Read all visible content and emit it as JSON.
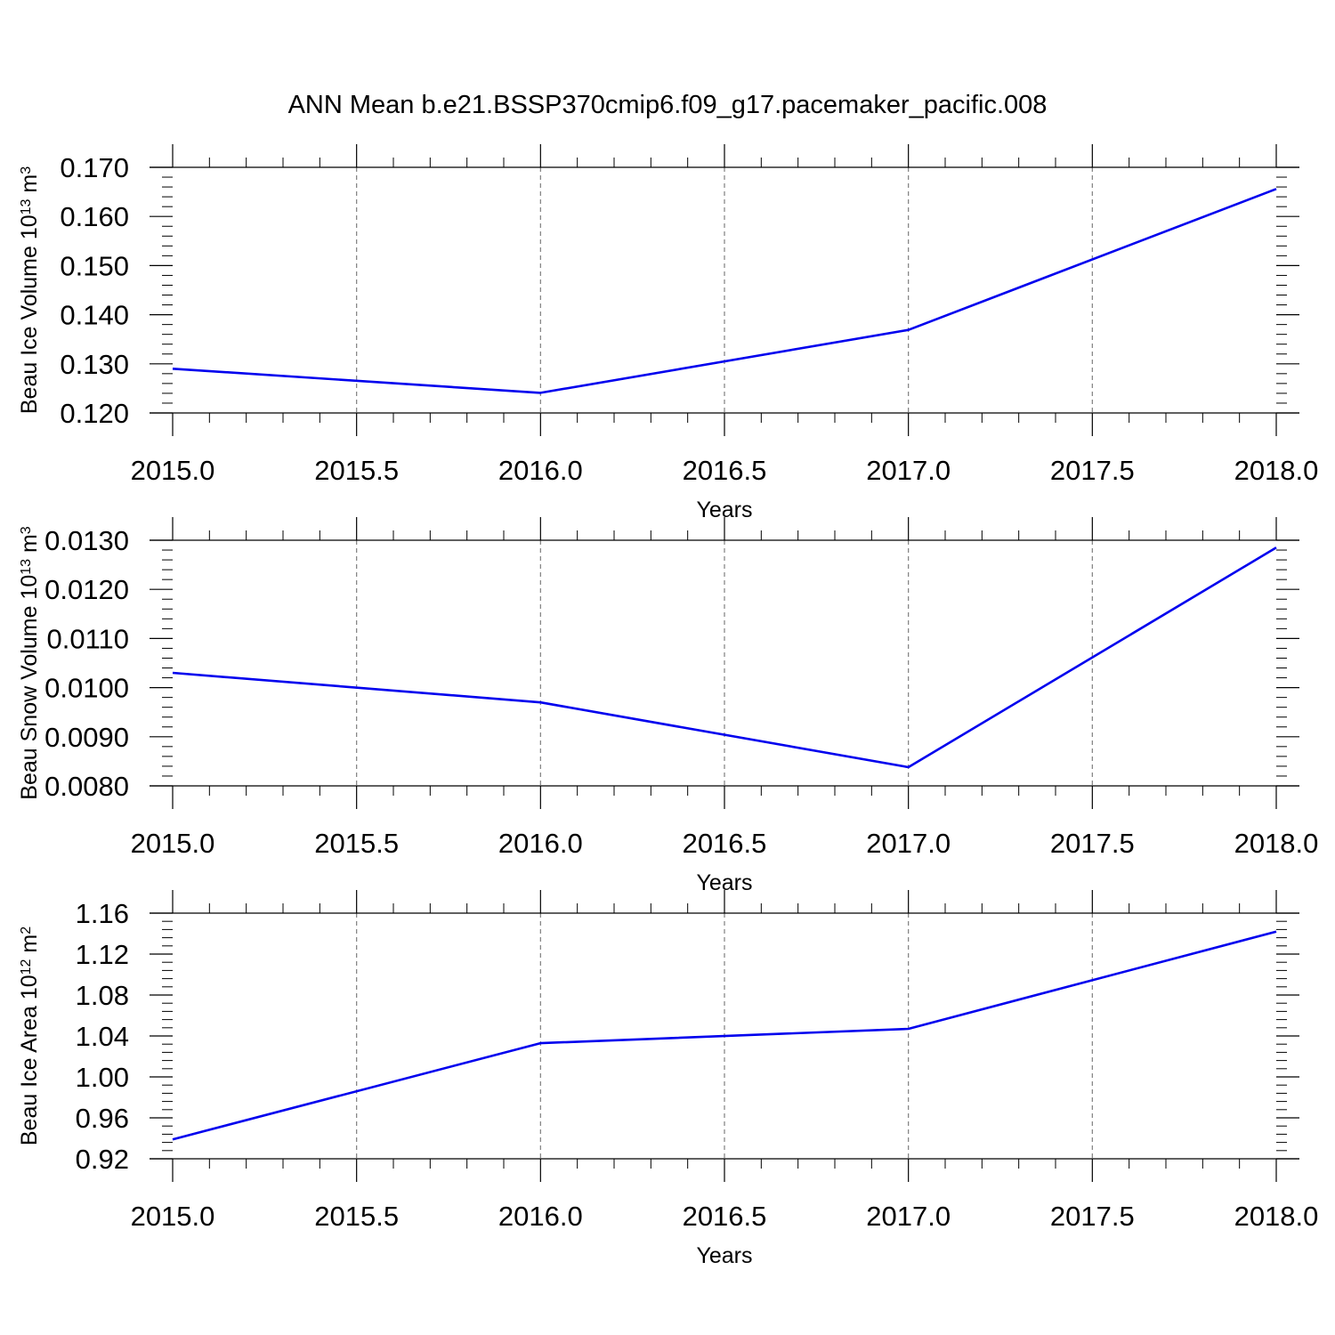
{
  "title": "ANN Mean b.e21.BSSP370cmip6.f09_g17.pacemaker_pacific.008",
  "colors": {
    "line": "#0000ee",
    "axis": "#000000",
    "grid": "#7f7f7f"
  },
  "chart_data": [
    {
      "type": "line",
      "xlabel": "Years",
      "ylabel": {
        "text": "Beau Ice Volume 10",
        "sup": "13",
        "unit": " m",
        "unit_sup": "3"
      },
      "x": [
        2015.0,
        2016.0,
        2017.0,
        2018.0
      ],
      "values": [
        0.129,
        0.1241,
        0.1369,
        0.1656
      ],
      "xlim": [
        2015.0,
        2018.0
      ],
      "ylim": [
        0.12,
        0.17
      ],
      "x_ticks": [
        "2015.0",
        "2015.5",
        "2016.0",
        "2016.5",
        "2017.0",
        "2017.5",
        "2018.0"
      ],
      "y_ticks": [
        "0.120",
        "0.130",
        "0.140",
        "0.150",
        "0.160",
        "0.170"
      ],
      "grid": "vertical-dashed"
    },
    {
      "type": "line",
      "xlabel": "Years",
      "ylabel": {
        "text": "Beau Snow Volume 10",
        "sup": "13",
        "unit": " m",
        "unit_sup": "3"
      },
      "x": [
        2015.0,
        2016.0,
        2017.0,
        2018.0
      ],
      "values": [
        0.0103,
        0.0097,
        0.00838,
        0.01285
      ],
      "xlim": [
        2015.0,
        2018.0
      ],
      "ylim": [
        0.008,
        0.013
      ],
      "x_ticks": [
        "2015.0",
        "2015.5",
        "2016.0",
        "2016.5",
        "2017.0",
        "2017.5",
        "2018.0"
      ],
      "y_ticks": [
        "0.0080",
        "0.0090",
        "0.0100",
        "0.0110",
        "0.0120",
        "0.0130"
      ],
      "grid": "vertical-dashed"
    },
    {
      "type": "line",
      "xlabel": "Years",
      "ylabel": {
        "text": "Beau Ice Area 10",
        "sup": "12",
        "unit": " m",
        "unit_sup": "2"
      },
      "x": [
        2015.0,
        2016.0,
        2017.0,
        2018.0
      ],
      "values": [
        0.939,
        1.033,
        1.047,
        1.142
      ],
      "xlim": [
        2015.0,
        2018.0
      ],
      "ylim": [
        0.92,
        1.16
      ],
      "x_ticks": [
        "2015.0",
        "2015.5",
        "2016.0",
        "2016.5",
        "2017.0",
        "2017.5",
        "2018.0"
      ],
      "y_ticks": [
        "0.92",
        "0.96",
        "1.00",
        "1.04",
        "1.08",
        "1.12",
        "1.16"
      ],
      "grid": "vertical-dashed"
    }
  ]
}
